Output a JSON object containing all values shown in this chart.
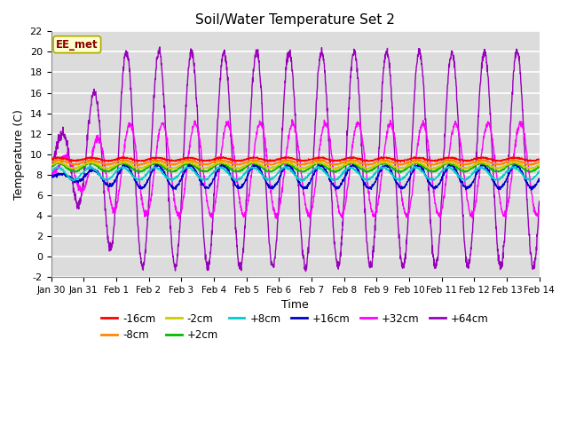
{
  "title": "Soil/Water Temperature Set 2",
  "xlabel": "Time",
  "ylabel": "Temperature (C)",
  "ylim": [
    -2,
    22
  ],
  "xlim": [
    0,
    15
  ],
  "x_tick_labels": [
    "Jan 30",
    "Jan 31",
    "Feb 1",
    "Feb 2",
    "Feb 3",
    "Feb 4",
    "Feb 5",
    "Feb 6",
    "Feb 7",
    "Feb 8",
    "Feb 9",
    "Feb 10",
    "Feb 11",
    "Feb 12",
    "Feb 13",
    "Feb 14"
  ],
  "yticks": [
    -2,
    0,
    2,
    4,
    6,
    8,
    10,
    12,
    14,
    16,
    18,
    20,
    22
  ],
  "colors": {
    "-16cm": "#FF0000",
    "-8cm": "#FF8800",
    "-2cm": "#CCCC00",
    "+2cm": "#00BB00",
    "+8cm": "#00CCCC",
    "+16cm": "#0000CC",
    "+32cm": "#FF00FF",
    "+64cm": "#9900BB"
  },
  "plot_bg": "#DCDCDC",
  "stripe_colors": [
    "#D8D8D8",
    "#E4E4E4"
  ]
}
